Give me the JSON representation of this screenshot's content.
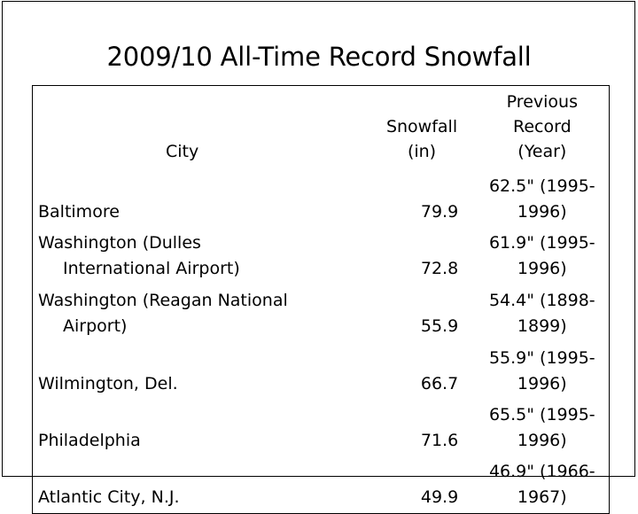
{
  "title": "2009/10 All-Time Record Snowfall",
  "table": {
    "headers": {
      "city": "City",
      "snowfall_line1": "Snowfall",
      "snowfall_line2": "(in)",
      "previous_line1": "Previous Record",
      "previous_line2": "(Year)"
    },
    "rows": [
      {
        "city_line1": "Baltimore",
        "city_line2": "",
        "snowfall": "79.9",
        "previous": "62.5\" (1995-1996)"
      },
      {
        "city_line1": "Washington (Dulles",
        "city_line2": "International Airport)",
        "snowfall": "72.8",
        "previous": "61.9\" (1995-1996)"
      },
      {
        "city_line1": "Washington (Reagan National",
        "city_line2": "Airport)",
        "snowfall": "55.9",
        "previous": "54.4\" (1898-1899)"
      },
      {
        "city_line1": "Wilmington, Del.",
        "city_line2": "",
        "snowfall": "66.7",
        "previous": "55.9\" (1995-1996)"
      },
      {
        "city_line1": "Philadelphia",
        "city_line2": "",
        "snowfall": "71.6",
        "previous": "65.5\" (1995-1996)"
      },
      {
        "city_line1": "Atlantic City, N.J.",
        "city_line2": "",
        "snowfall": "49.9",
        "previous": "46.9\" (1966-1967)"
      }
    ]
  }
}
